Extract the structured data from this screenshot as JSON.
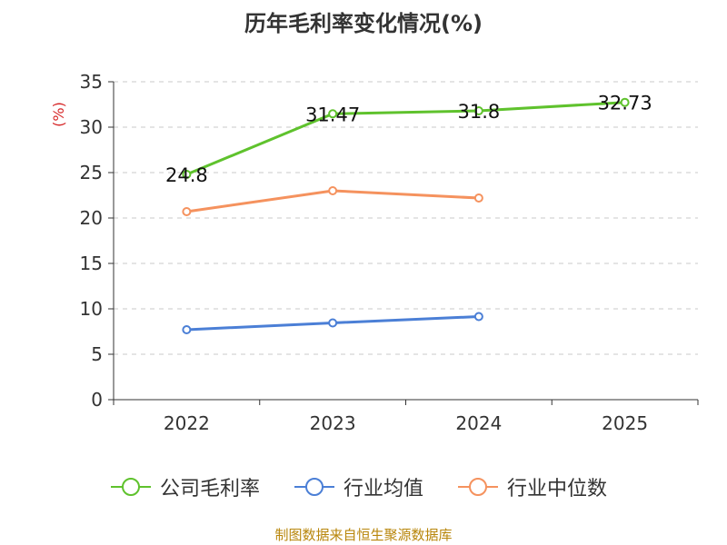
{
  "chart_data": {
    "type": "line",
    "title": "历年毛利率变化情况(%)",
    "ylabel": "(%)",
    "categories": [
      "2022",
      "2023",
      "2024",
      "2025"
    ],
    "ylim": [
      0,
      35
    ],
    "yticks": [
      0,
      5,
      10,
      15,
      20,
      25,
      30,
      35
    ],
    "grid": true,
    "legend_position": "bottom",
    "series": [
      {
        "name": "公司毛利率",
        "color": "#5fc22d",
        "values": [
          24.8,
          31.47,
          31.8,
          32.73
        ],
        "labels": [
          "24.8",
          "31.47",
          "31.8",
          "32.73"
        ]
      },
      {
        "name": "行业均值",
        "color": "#4b7fd6",
        "values": [
          7.7,
          8.45,
          9.15,
          null
        ]
      },
      {
        "name": "行业中位数",
        "color": "#f5925e",
        "values": [
          20.7,
          23.0,
          22.2,
          null
        ]
      }
    ]
  },
  "source": "制图数据来自恒生聚源数据库"
}
